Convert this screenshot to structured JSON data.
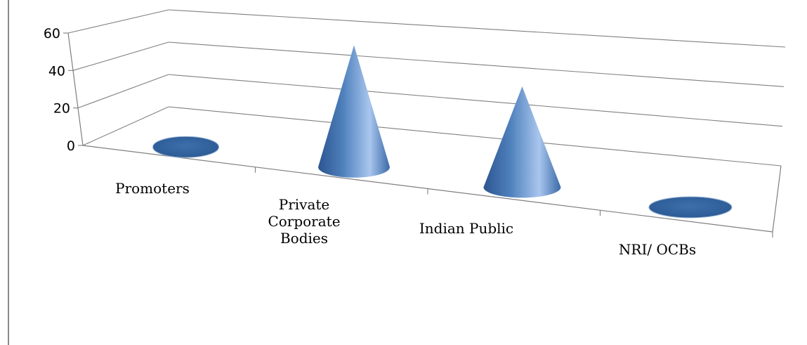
{
  "chart_data": {
    "type": "bar",
    "subtype": "3d-cone",
    "categories": [
      "Promoters",
      "Private Corporate Bodies",
      "Indian Public",
      "NRI/ OCBs"
    ],
    "category_lines": [
      [
        "Promoters"
      ],
      [
        "Private",
        "Corporate",
        "Bodies"
      ],
      [
        "Indian Public"
      ],
      [
        "NRI/ OCBs"
      ]
    ],
    "values": [
      0,
      52,
      43,
      0
    ],
    "ylim": [
      0,
      60
    ],
    "yticks": [
      "0",
      "20",
      "40",
      "60"
    ],
    "grid": true,
    "legend": "none",
    "colors": {
      "cone": "#4f81bd",
      "cone_light": "#a9c6ee",
      "cone_dark": "#2c5590",
      "grid": "#7f7f7f"
    }
  }
}
